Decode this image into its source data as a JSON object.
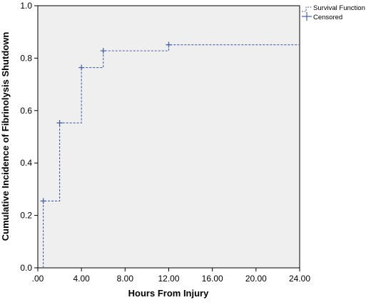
{
  "chart_data": {
    "type": "line",
    "step": true,
    "xlabel": "Hours From Injury",
    "ylabel": "Cumulative Incidence of Fibrinolysis Shutdown",
    "xlim": [
      0,
      24
    ],
    "ylim": [
      0,
      1
    ],
    "xticks": [
      0,
      4,
      8,
      12,
      16,
      20,
      24
    ],
    "xtick_labels": [
      ".00",
      "4.00",
      "8.00",
      "12.00",
      "16.00",
      "20.00",
      "24.00"
    ],
    "yticks": [
      0,
      0.2,
      0.4,
      0.6,
      0.8,
      1.0
    ],
    "ytick_labels": [
      "0.0",
      "0.2",
      "0.4",
      "0.6",
      "0.8",
      "1.0"
    ],
    "grid": false,
    "plot_background": "#efefef",
    "line_color": "#4a63a8",
    "legend_position": "top-right",
    "series": [
      {
        "name": "Survival Function",
        "style": "dashed-step",
        "x": [
          0.5,
          0.5,
          2,
          4,
          6,
          12,
          24
        ],
        "y": [
          0,
          0.255,
          0.553,
          0.764,
          0.828,
          0.851,
          0.851
        ]
      },
      {
        "name": "Censored",
        "style": "plus-marker",
        "x": [
          0.5,
          2,
          4,
          6,
          12
        ],
        "y": [
          0.255,
          0.553,
          0.764,
          0.828,
          0.851
        ]
      }
    ]
  }
}
